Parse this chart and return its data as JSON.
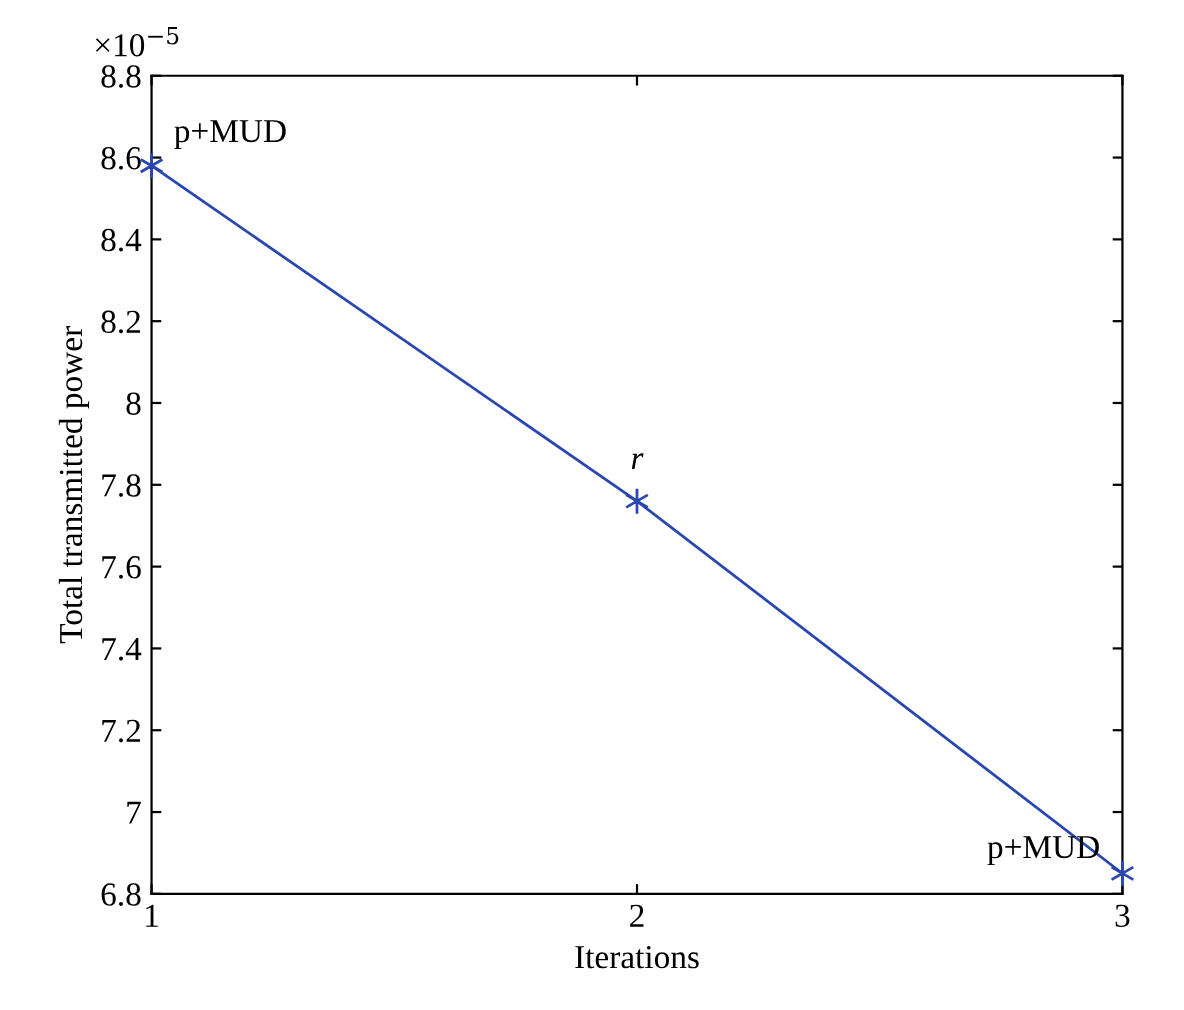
{
  "chart_data": {
    "type": "line",
    "xlabel": "Iterations",
    "ylabel": "Total transmitted power",
    "x": [
      1,
      2,
      3
    ],
    "series": [
      {
        "color": "#2a46b0",
        "values": [
          8.58,
          7.76,
          6.85
        ]
      }
    ],
    "marker": "cross",
    "line_style": "solid",
    "grid": false,
    "legend": false,
    "xlim": [
      1,
      3
    ],
    "xticks": [
      1,
      2,
      3
    ],
    "ylim": [
      6.8,
      8.8
    ],
    "yticks": [
      6.8,
      7,
      7.2,
      7.4,
      7.6,
      7.8,
      8,
      8.2,
      8.4,
      8.6,
      8.8
    ],
    "annotations": [
      "×10$^{−5}$",
      {
        "text": "p+MUD",
        "x": 1,
        "y": 8.58
      },
      {
        "text": "r",
        "x": 2,
        "y": 7.76
      },
      {
        "text": "p+MUD",
        "x": 3,
        "y": 6.85
      }
    ]
  }
}
